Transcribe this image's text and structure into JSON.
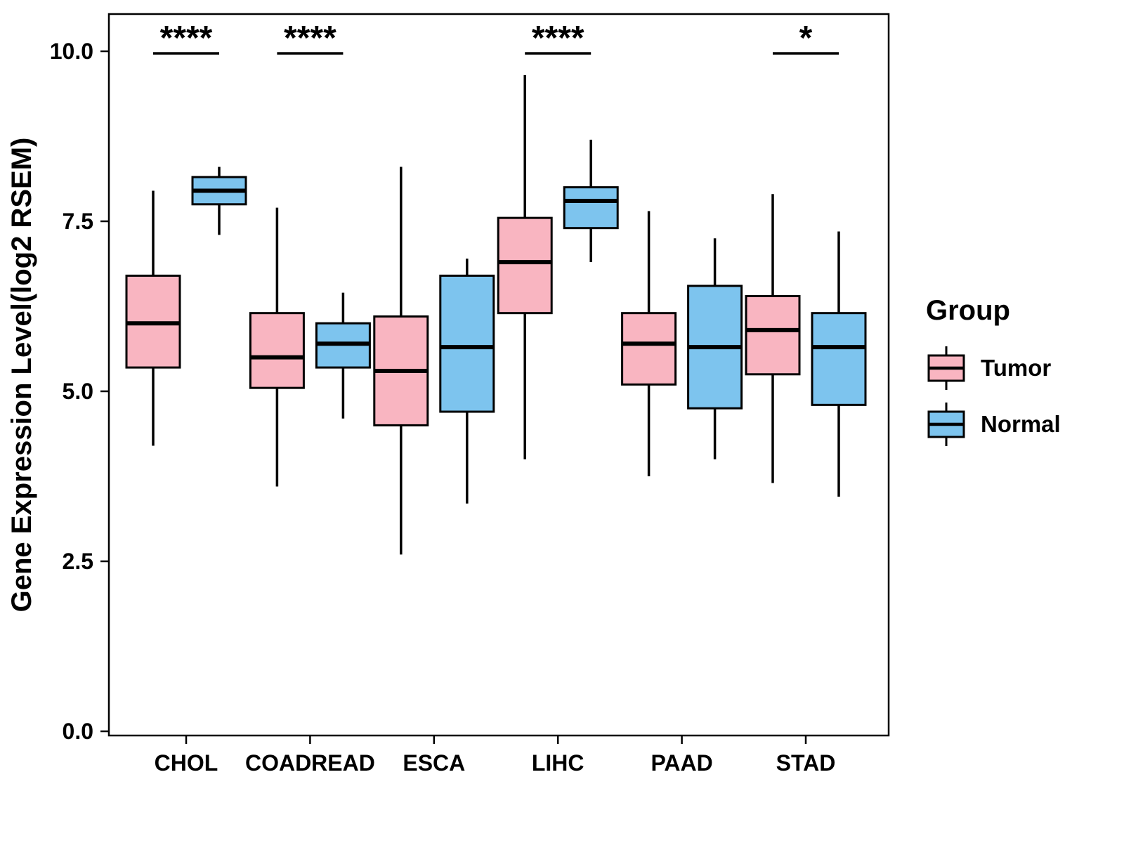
{
  "chart_data": {
    "type": "boxplot",
    "title": "",
    "ylabel": "Gene Expression Level(log2 RSEM)",
    "xlabel": "",
    "ylim": [
      0,
      10.55
    ],
    "yticks": [
      0.0,
      2.5,
      5.0,
      7.5,
      10.0
    ],
    "ytick_labels": [
      "0.0",
      "2.5",
      "5.0",
      "7.5",
      "10.0"
    ],
    "grid": "off",
    "categories": [
      "CHOL",
      "COADREAD",
      "ESCA",
      "LIHC",
      "PAAD",
      "STAD"
    ],
    "series": [
      {
        "name": "Tumor",
        "color": "#F9B5C1",
        "boxes": [
          {
            "min": 4.2,
            "q1": 5.35,
            "median": 6.0,
            "q3": 6.7,
            "max": 7.95
          },
          {
            "min": 3.6,
            "q1": 5.05,
            "median": 5.5,
            "q3": 6.15,
            "max": 7.7
          },
          {
            "min": 2.6,
            "q1": 4.5,
            "median": 5.3,
            "q3": 6.1,
            "max": 8.3
          },
          {
            "min": 4.0,
            "q1": 6.15,
            "median": 6.9,
            "q3": 7.55,
            "max": 9.65
          },
          {
            "min": 3.75,
            "q1": 5.1,
            "median": 5.7,
            "q3": 6.15,
            "max": 7.65
          },
          {
            "min": 3.65,
            "q1": 5.25,
            "median": 5.9,
            "q3": 6.4,
            "max": 7.9
          }
        ]
      },
      {
        "name": "Normal",
        "color": "#7DC4EE",
        "boxes": [
          {
            "min": 7.3,
            "q1": 7.75,
            "median": 7.95,
            "q3": 8.15,
            "max": 8.3
          },
          {
            "min": 4.6,
            "q1": 5.35,
            "median": 5.7,
            "q3": 6.0,
            "max": 6.45
          },
          {
            "min": 3.35,
            "q1": 4.7,
            "median": 5.65,
            "q3": 6.7,
            "max": 6.95
          },
          {
            "min": 6.9,
            "q1": 7.4,
            "median": 7.8,
            "q3": 8.0,
            "max": 8.7
          },
          {
            "min": 4.0,
            "q1": 4.75,
            "median": 5.65,
            "q3": 6.55,
            "max": 7.25
          },
          {
            "min": 3.45,
            "q1": 4.8,
            "median": 5.65,
            "q3": 6.15,
            "max": 7.35
          }
        ]
      }
    ],
    "significance": [
      {
        "category": "CHOL",
        "label": "****"
      },
      {
        "category": "COADREAD",
        "label": "****"
      },
      {
        "category": "LIHC",
        "label": "****"
      },
      {
        "category": "STAD",
        "label": "*"
      }
    ],
    "legend": {
      "title": "Group",
      "position": "right",
      "entries": [
        {
          "label": "Tumor",
          "color": "#F9B5C1"
        },
        {
          "label": "Normal",
          "color": "#7DC4EE"
        }
      ]
    }
  }
}
